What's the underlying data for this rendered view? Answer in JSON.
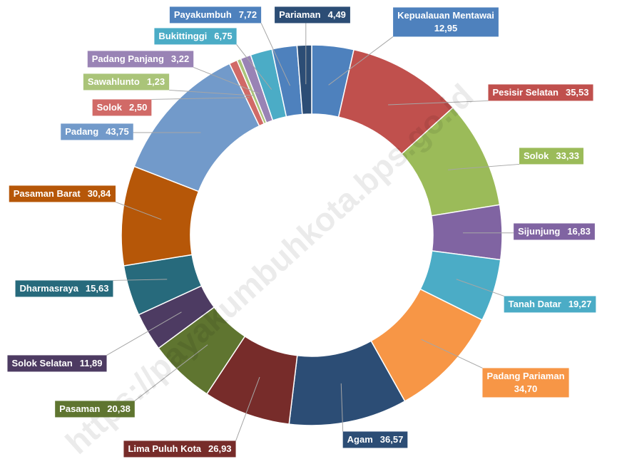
{
  "chart_data": {
    "type": "donut",
    "categories": [
      "Kepualauan Mentawai",
      "Pesisir Selatan",
      "Solok",
      "Sijunjung",
      "Tanah Datar",
      "Padang Pariaman",
      "Agam",
      "Lima Puluh Kota",
      "Pasaman",
      "Solok Selatan",
      "Dharmasraya",
      "Pasaman Barat",
      "Padang",
      "Solok",
      "Sawahlunto",
      "Padang Panjang",
      "Bukittinggi",
      "Payakumbuh",
      "Pariaman"
    ],
    "values": [
      12.95,
      35.53,
      33.33,
      16.83,
      19.27,
      34.7,
      36.57,
      26.93,
      20.38,
      11.89,
      15.63,
      30.84,
      43.75,
      2.5,
      1.23,
      3.22,
      6.75,
      7.72,
      4.49
    ],
    "value_labels": [
      "12,95",
      "35,53",
      "33,33",
      "16,83",
      "19,27",
      "34,70",
      "36,57",
      "26,93",
      "20,38",
      "11,89",
      "15,63",
      "30,84",
      "43,75",
      "2,50",
      "1,23",
      "3,22",
      "6,75",
      "7,72",
      "4,49"
    ],
    "colors": [
      "#4e81bd",
      "#c0504d",
      "#9bbb59",
      "#8064a2",
      "#4bacc6",
      "#f79646",
      "#2c4d75",
      "#772c2a",
      "#5f7530",
      "#4d3b62",
      "#276a7c",
      "#b65708",
      "#729aca",
      "#d16a67",
      "#aac479",
      "#9983b5",
      "#4bacc6",
      "#4e81bd",
      "#2c4d75"
    ],
    "watermark": "https://payakumbuhkota.bps.go.id"
  }
}
